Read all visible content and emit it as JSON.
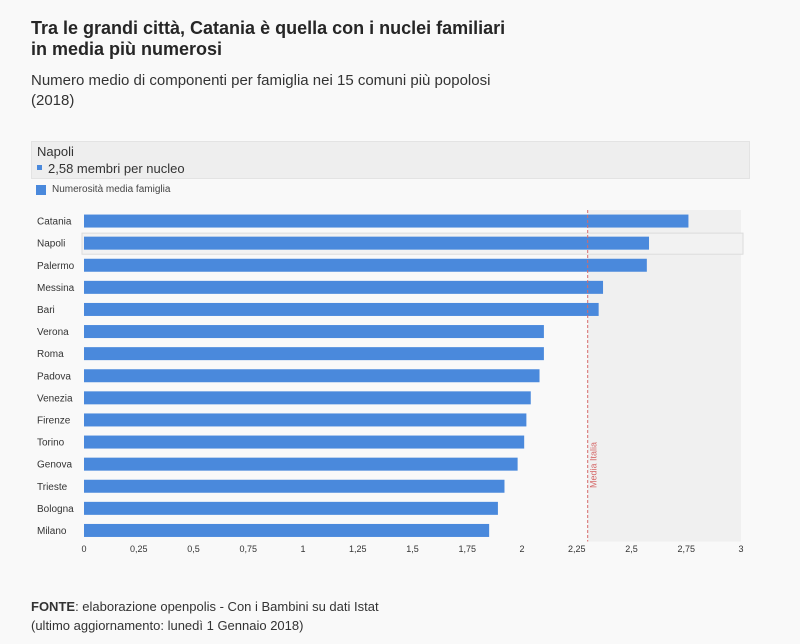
{
  "header": {
    "title": "Tra le grandi città, Catania è quella con i nuclei familiari in media più numerosi",
    "subtitle": "Numero medio di componenti per famiglia nei 15 comuni più popolosi (2018)"
  },
  "tooltip": {
    "category": "Napoli",
    "value_text": "2,58 membri per nucleo"
  },
  "chart_data": {
    "type": "bar",
    "orientation": "horizontal",
    "categories": [
      "Catania",
      "Napoli",
      "Palermo",
      "Messina",
      "Bari",
      "Verona",
      "Roma",
      "Padova",
      "Venezia",
      "Firenze",
      "Torino",
      "Genova",
      "Trieste",
      "Bologna",
      "Milano"
    ],
    "series": [
      {
        "name": "Numerosità media famiglia",
        "values": [
          2.76,
          2.58,
          2.57,
          2.37,
          2.35,
          2.1,
          2.1,
          2.08,
          2.04,
          2.02,
          2.01,
          1.98,
          1.92,
          1.89,
          1.85
        ],
        "color": "#4a89dc"
      }
    ],
    "xlim": [
      0,
      3
    ],
    "x_ticks": [
      "0",
      "0,25",
      "0,5",
      "0,75",
      "1",
      "1,25",
      "1,5",
      "1,75",
      "2",
      "2,25",
      "2,5",
      "2,75",
      "3"
    ],
    "reference_line": {
      "label": "Media Italia",
      "value": 2.3,
      "color": "#d66a6a"
    },
    "highlighted_category": "Napoli",
    "legend_position": "top-left",
    "grid": false
  },
  "footer": {
    "source_label": "FONTE",
    "source_text": ": elaborazione openpolis - Con i Bambini su dati Istat",
    "updated_text": "(ultimo aggiornamento: lunedì 1 Gennaio 2018)"
  }
}
